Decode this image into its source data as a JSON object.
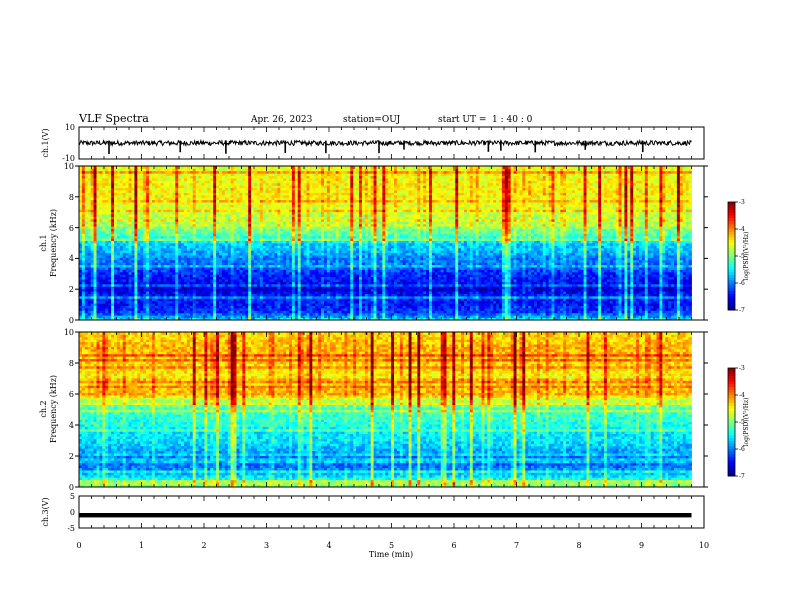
{
  "header": {
    "title": "VLF Spectra",
    "date": "Apr. 26, 2023",
    "station": "station=OUJ",
    "start_label": "start  UT =",
    "start_time": "1 : 40 : 0"
  },
  "chart_data": [
    {
      "type": "line",
      "panel": "ch1-waveform",
      "ylabel": "ch.1(V)",
      "ylim": [
        -10,
        10
      ],
      "yticks": [
        "10",
        "-10"
      ],
      "xlim": [
        0,
        10
      ],
      "series": [
        {
          "baseline": 0,
          "noise_amplitude": 1.5,
          "spike_times_min": [
            0.48,
            1.62,
            2.35,
            3.3,
            3.95,
            4.8,
            5.2,
            6.55,
            6.75,
            7.3,
            8.1,
            9.02
          ]
        }
      ],
      "x_end_min": 9.8
    },
    {
      "type": "heatmap",
      "panel": "ch1-spectrogram",
      "ylabel_top": "ch.1",
      "ylabel": "Frequency (kHz)",
      "ylim": [
        0,
        10
      ],
      "yticks": [
        "0",
        "2",
        "4",
        "6",
        "8",
        "10"
      ],
      "xlim": [
        0,
        10
      ],
      "x_end_min": 9.8,
      "colorbar": {
        "label": "log(PSD)(V²/Hz)",
        "range": [
          -7,
          -3
        ],
        "ticks": [
          "-3",
          "-4",
          "-5",
          "-6",
          "-7"
        ]
      },
      "profile_by_freq_kHz": [
        [
          0,
          -5.6
        ],
        [
          0.5,
          -6.3
        ],
        [
          1.0,
          -6.5
        ],
        [
          1.5,
          -6.4
        ],
        [
          2.0,
          -6.7
        ],
        [
          2.5,
          -6.5
        ],
        [
          3.0,
          -6.4
        ],
        [
          3.5,
          -6.1
        ],
        [
          4.0,
          -6.0
        ],
        [
          4.5,
          -5.8
        ],
        [
          5.0,
          -5.7
        ],
        [
          5.5,
          -5.2
        ],
        [
          6.0,
          -5.0
        ],
        [
          6.5,
          -4.8
        ],
        [
          7.0,
          -4.7
        ],
        [
          8.0,
          -4.5
        ],
        [
          9.0,
          -4.5
        ],
        [
          10.0,
          -4.6
        ]
      ]
    },
    {
      "type": "heatmap",
      "panel": "ch2-spectrogram",
      "ylabel_top": "ch.2",
      "ylabel": "Frequency (kHz)",
      "ylim": [
        0,
        10
      ],
      "yticks": [
        "0",
        "2",
        "4",
        "6",
        "8",
        "10"
      ],
      "xlim": [
        0,
        10
      ],
      "x_end_min": 9.8,
      "colorbar": {
        "label": "log(PSD)(V²/Hz)",
        "range": [
          -7,
          -3
        ],
        "ticks": [
          "-3",
          "-4",
          "-5",
          "-6",
          "-7"
        ]
      },
      "profile_by_freq_kHz": [
        [
          0,
          -5.0
        ],
        [
          0.5,
          -5.4
        ],
        [
          1.0,
          -5.9
        ],
        [
          1.5,
          -6.1
        ],
        [
          2.0,
          -6.0
        ],
        [
          2.5,
          -5.8
        ],
        [
          3.0,
          -5.6
        ],
        [
          3.5,
          -5.6
        ],
        [
          4.0,
          -5.4
        ],
        [
          4.5,
          -5.3
        ],
        [
          5.0,
          -5.3
        ],
        [
          5.5,
          -4.9
        ],
        [
          6.0,
          -4.2
        ],
        [
          6.5,
          -4.3
        ],
        [
          7.0,
          -4.5
        ],
        [
          8.0,
          -4.3
        ],
        [
          9.0,
          -4.2
        ],
        [
          10.0,
          -4.4
        ]
      ]
    },
    {
      "type": "line",
      "panel": "ch3-waveform",
      "ylabel": "ch.3(V)",
      "ylim": [
        -5,
        5
      ],
      "yticks": [
        "5",
        "0",
        "-5"
      ],
      "xlim": [
        0,
        10
      ],
      "x_end_min": 9.8,
      "series": [
        {
          "baseline": -1.0,
          "noise_amplitude": 0.3
        }
      ]
    }
  ],
  "xaxis": {
    "label": "Time (min)",
    "ticks": [
      "0",
      "1",
      "2",
      "3",
      "4",
      "5",
      "6",
      "7",
      "8",
      "9",
      "10"
    ]
  }
}
